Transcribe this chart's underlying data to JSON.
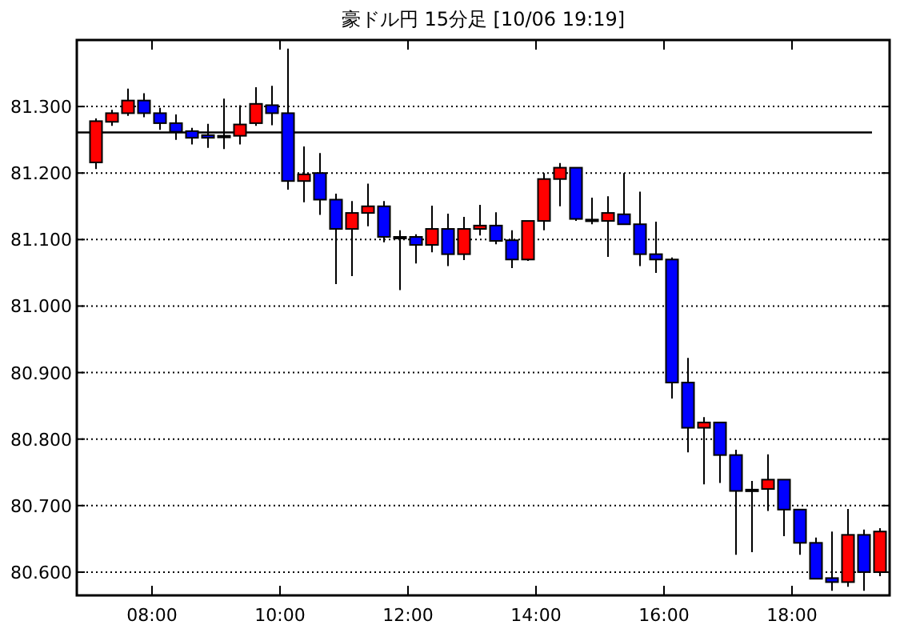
{
  "chart_data": {
    "type": "candlestick",
    "title": "豪ドル円 15分足 [10/06 19:19]",
    "x": [
      7.125,
      7.375,
      7.625,
      7.875,
      8.125,
      8.375,
      8.625,
      8.875,
      9.125,
      9.375,
      9.625,
      9.875,
      10.125,
      10.375,
      10.625,
      10.875,
      11.125,
      11.375,
      11.625,
      11.875,
      12.125,
      12.375,
      12.625,
      12.875,
      13.125,
      13.375,
      13.625,
      13.875,
      14.125,
      14.375,
      14.625,
      14.875,
      15.125,
      15.375,
      15.625,
      15.875,
      16.125,
      16.375,
      16.625,
      16.875,
      17.125,
      17.375,
      17.625,
      17.875,
      18.125,
      18.375,
      18.625,
      18.875,
      19.125,
      19.375
    ],
    "ohlc": [
      [
        81.216,
        81.282,
        81.206,
        81.278
      ],
      [
        81.277,
        81.295,
        81.271,
        81.29
      ],
      [
        81.29,
        81.327,
        81.286,
        81.309
      ],
      [
        81.309,
        81.32,
        81.284,
        81.29
      ],
      [
        81.29,
        81.298,
        81.265,
        81.275
      ],
      [
        81.275,
        81.288,
        81.25,
        81.262
      ],
      [
        81.263,
        81.268,
        81.243,
        81.253
      ],
      [
        81.257,
        81.274,
        81.238,
        81.253
      ],
      [
        81.256,
        81.312,
        81.236,
        81.256
      ],
      [
        81.256,
        81.302,
        81.243,
        81.273
      ],
      [
        81.275,
        81.329,
        81.271,
        81.304
      ],
      [
        81.302,
        81.331,
        81.272,
        81.29
      ],
      [
        81.29,
        81.387,
        81.175,
        81.188
      ],
      [
        81.188,
        81.24,
        81.156,
        81.198
      ],
      [
        81.2,
        81.23,
        81.137,
        81.16
      ],
      [
        81.16,
        81.169,
        81.033,
        81.116
      ],
      [
        81.116,
        81.158,
        81.045,
        81.14
      ],
      [
        81.14,
        81.184,
        81.12,
        81.15
      ],
      [
        81.15,
        81.158,
        81.096,
        81.104
      ],
      [
        81.104,
        81.114,
        81.024,
        81.104
      ],
      [
        81.104,
        81.108,
        81.064,
        81.092
      ],
      [
        81.092,
        81.151,
        81.081,
        81.116
      ],
      [
        81.116,
        81.139,
        81.06,
        81.078
      ],
      [
        81.078,
        81.134,
        81.069,
        81.116
      ],
      [
        81.116,
        81.152,
        81.106,
        81.121
      ],
      [
        81.121,
        81.141,
        81.093,
        81.098
      ],
      [
        81.099,
        81.114,
        81.057,
        81.07
      ],
      [
        81.07,
        81.128,
        81.068,
        81.128
      ],
      [
        81.128,
        81.2,
        81.114,
        81.191
      ],
      [
        81.191,
        81.215,
        81.15,
        81.208
      ],
      [
        81.208,
        81.208,
        81.128,
        81.131
      ],
      [
        81.13,
        81.163,
        81.123,
        81.13
      ],
      [
        81.128,
        81.165,
        81.074,
        81.14
      ],
      [
        81.138,
        81.2,
        81.123,
        81.123
      ],
      [
        81.123,
        81.172,
        81.06,
        81.078
      ],
      [
        81.078,
        81.127,
        81.05,
        81.07
      ],
      [
        81.07,
        81.073,
        80.861,
        80.885
      ],
      [
        80.885,
        80.922,
        80.78,
        80.817
      ],
      [
        80.817,
        80.833,
        80.732,
        80.825
      ],
      [
        80.825,
        80.825,
        80.734,
        80.776
      ],
      [
        80.776,
        80.784,
        80.626,
        80.722
      ],
      [
        80.724,
        80.737,
        80.63,
        80.724
      ],
      [
        80.725,
        80.777,
        80.692,
        80.739
      ],
      [
        80.739,
        80.739,
        80.654,
        80.694
      ],
      [
        80.694,
        80.694,
        80.626,
        80.644
      ],
      [
        80.644,
        80.652,
        80.59,
        80.59
      ],
      [
        80.591,
        80.661,
        80.572,
        80.585
      ],
      [
        80.585,
        80.695,
        80.578,
        80.656
      ],
      [
        80.656,
        80.664,
        80.572,
        80.6
      ],
      [
        80.6,
        80.666,
        80.594,
        80.661
      ]
    ],
    "colors": [
      "#ff0000",
      "#ff0000",
      "#ff0000",
      "#0000ff",
      "#0000ff",
      "#0000ff",
      "#0000ff",
      "#0000ff",
      "#000000",
      "#ff0000",
      "#ff0000",
      "#0000ff",
      "#0000ff",
      "#ff0000",
      "#0000ff",
      "#0000ff",
      "#ff0000",
      "#ff0000",
      "#0000ff",
      "#000000",
      "#0000ff",
      "#ff0000",
      "#0000ff",
      "#ff0000",
      "#ff0000",
      "#0000ff",
      "#0000ff",
      "#ff0000",
      "#ff0000",
      "#ff0000",
      "#0000ff",
      "#000000",
      "#ff0000",
      "#0000ff",
      "#0000ff",
      "#0000ff",
      "#0000ff",
      "#0000ff",
      "#ff0000",
      "#0000ff",
      "#0000ff",
      "#000000",
      "#ff0000",
      "#0000ff",
      "#0000ff",
      "#0000ff",
      "#0000ff",
      "#ff0000",
      "#0000ff",
      "#ff0000"
    ],
    "xlim": [
      6.825,
      19.525
    ],
    "xticks": [
      {
        "value": 8,
        "label": "08:00"
      },
      {
        "value": 10,
        "label": "10:00"
      },
      {
        "value": 12,
        "label": "12:00"
      },
      {
        "value": 14,
        "label": "14:00"
      },
      {
        "value": 16,
        "label": "16:00"
      },
      {
        "value": 18,
        "label": "18:00"
      }
    ],
    "ylim": [
      80.565,
      81.4
    ],
    "yticks": [
      {
        "value": 80.6,
        "label": "80.600"
      },
      {
        "value": 80.7,
        "label": "80.700"
      },
      {
        "value": 80.8,
        "label": "80.800"
      },
      {
        "value": 80.9,
        "label": "80.900"
      },
      {
        "value": 81.0,
        "label": "81.000"
      },
      {
        "value": 81.1,
        "label": "81.100"
      },
      {
        "value": 81.2,
        "label": "81.200"
      },
      {
        "value": 81.3,
        "label": "81.300"
      }
    ],
    "grid": "y",
    "ref_lines": [
      {
        "axis": "y",
        "value": 81.261,
        "color": "#000000",
        "line_style": "solid"
      }
    ]
  }
}
